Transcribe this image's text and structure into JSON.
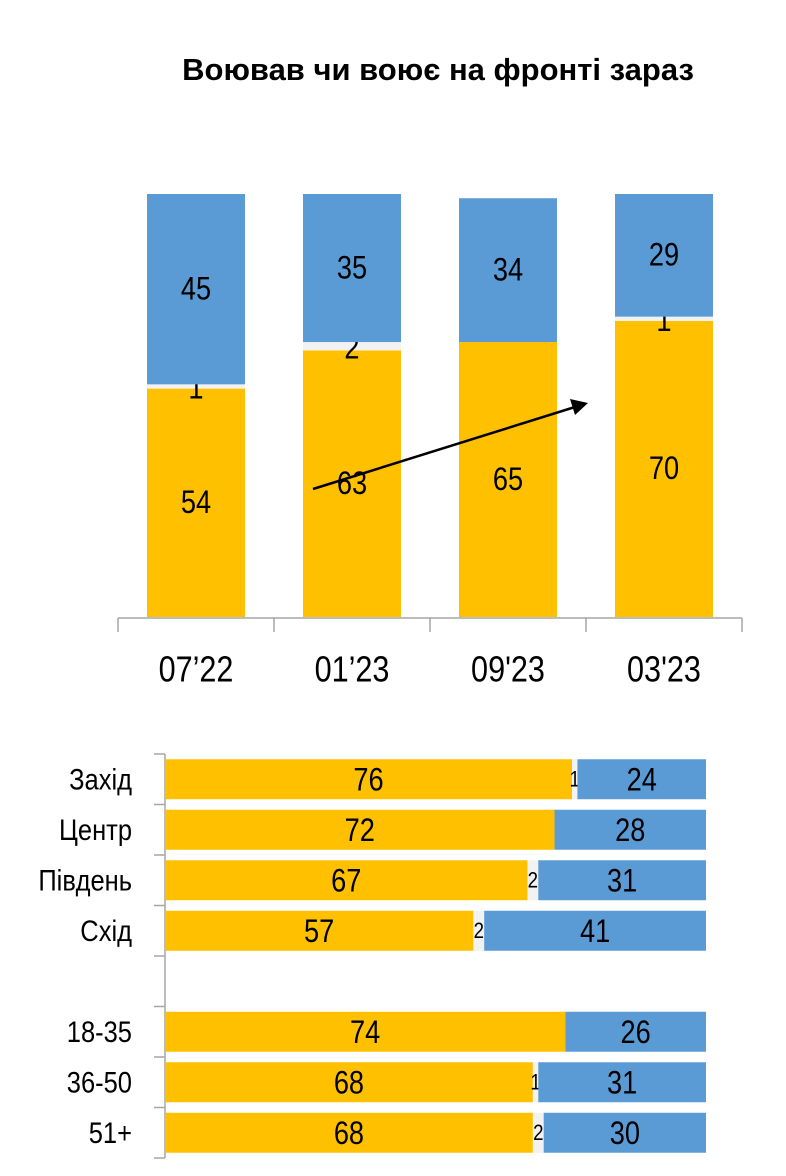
{
  "chart_data": [
    {
      "type": "bar",
      "stacked": true,
      "orientation": "vertical",
      "title": "Воював чи воює на фронті зараз",
      "categories": [
        "07’22",
        "01’23",
        "09'23",
        "03'23"
      ],
      "series": [
        {
          "values": [
            54,
            63,
            65,
            70
          ],
          "color": "#FFC000"
        },
        {
          "values": [
            1,
            2,
            null,
            1
          ],
          "color": "#F2F2F2"
        },
        {
          "values": [
            45,
            35,
            34,
            29
          ],
          "color": "#5B9BD5"
        }
      ],
      "ylim": [
        0,
        100
      ],
      "grid": false,
      "annotations": [
        "upward trend arrow across bars"
      ]
    },
    {
      "type": "bar",
      "stacked": true,
      "orientation": "horizontal",
      "categories": [
        "Захід",
        "Центр",
        "Південь",
        "Схід",
        "",
        "18-35",
        "36-50",
        "51+"
      ],
      "series": [
        {
          "values": [
            76,
            72,
            67,
            57,
            null,
            74,
            68,
            68
          ],
          "color": "#FFC000"
        },
        {
          "values": [
            1,
            null,
            2,
            2,
            null,
            null,
            1,
            2
          ],
          "color": "#F2F2F2"
        },
        {
          "values": [
            24,
            28,
            31,
            41,
            null,
            26,
            31,
            30
          ],
          "color": "#5B9BD5"
        }
      ],
      "xlim": [
        0,
        100
      ],
      "grid": false
    }
  ]
}
